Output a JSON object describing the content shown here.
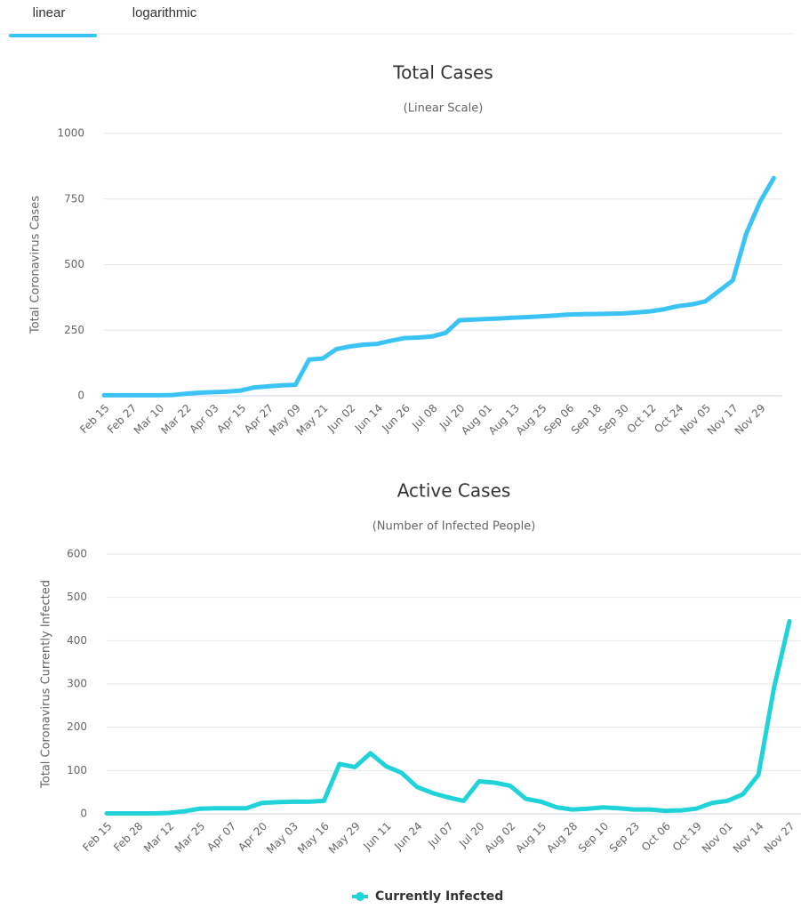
{
  "tabs": [
    "linear",
    "logarithmic"
  ],
  "chart_data": [
    {
      "type": "line",
      "title": "Total Cases",
      "subtitle": "(Linear Scale)",
      "y_label": "Total Coronavirus Cases",
      "categories": [
        "Feb 15",
        null,
        "Feb 27",
        null,
        "Mar 10",
        null,
        "Mar 22",
        null,
        "Apr 03",
        null,
        "Apr 15",
        null,
        "Apr 27",
        null,
        "May 09",
        null,
        "May 21",
        null,
        "Jun 02",
        null,
        "Jun 14",
        null,
        "Jun 26",
        null,
        "Jul 08",
        null,
        "Jul 20",
        null,
        "Aug 01",
        null,
        "Aug 13",
        null,
        "Aug 25",
        null,
        "Sep 06",
        null,
        "Sep 18",
        null,
        "Sep 30",
        null,
        "Oct 12",
        null,
        "Oct 24",
        null,
        "Nov 05",
        null,
        "Nov 17",
        null,
        "Nov 29",
        null
      ],
      "series": [
        {
          "color": "#3cc3f5",
          "values": [
            2,
            2,
            2,
            2,
            2,
            3,
            8,
            12,
            14,
            16,
            20,
            32,
            36,
            40,
            42,
            138,
            142,
            178,
            188,
            195,
            198,
            210,
            220,
            222,
            226,
            240,
            288,
            290,
            293,
            295,
            298,
            300,
            303,
            306,
            310,
            311,
            312,
            313,
            314,
            318,
            322,
            330,
            342,
            348,
            360,
            400,
            440,
            620,
            740,
            830
          ]
        }
      ],
      "ylim": [
        0,
        1000
      ],
      "yticks": [
        0,
        250,
        500,
        750,
        1000
      ],
      "grid": true
    },
    {
      "type": "line",
      "title": "Active Cases",
      "subtitle": "(Number of Infected People)",
      "y_label": "Total Coronavirus Currently Infected",
      "categories": [
        "Feb 15",
        null,
        "Feb 28",
        null,
        "Mar 12",
        null,
        "Mar 25",
        null,
        "Apr 07",
        null,
        "Apr 20",
        null,
        "May 03",
        null,
        "May 16",
        null,
        "May 29",
        null,
        "Jun 11",
        null,
        "Jun 24",
        null,
        "Jul 07",
        null,
        "Jul 20",
        null,
        "Aug 02",
        null,
        "Aug 15",
        null,
        "Aug 28",
        null,
        "Sep 10",
        null,
        "Sep 23",
        null,
        "Oct 06",
        null,
        "Oct 19",
        null,
        "Nov 01",
        null,
        "Nov 14",
        null,
        "Nov 27"
      ],
      "series": [
        {
          "name": "Currently Infected",
          "color": "#1fd3d8",
          "values": [
            1,
            1,
            1,
            1,
            2,
            6,
            12,
            13,
            13,
            13,
            25,
            27,
            28,
            28,
            30,
            115,
            108,
            140,
            110,
            95,
            62,
            48,
            38,
            30,
            75,
            72,
            65,
            35,
            28,
            15,
            10,
            12,
            15,
            13,
            10,
            10,
            7,
            8,
            12,
            25,
            30,
            45,
            90,
            290,
            445
          ]
        }
      ],
      "ylim": [
        0,
        600
      ],
      "yticks": [
        0,
        100,
        200,
        300,
        400,
        500,
        600
      ],
      "grid": true
    }
  ]
}
